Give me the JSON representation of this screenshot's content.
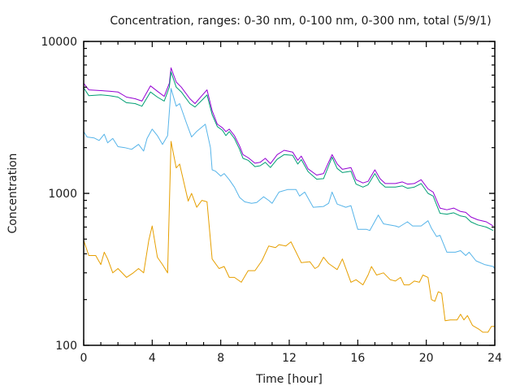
{
  "chart_data": {
    "type": "line",
    "title": "Concentration, ranges: 0-30 nm, 0-100 nm, 0-300 nm, total (5/9/1)",
    "xlabel": "Time [hour]",
    "ylabel": "Concentration",
    "xlim": [
      0,
      24
    ],
    "ylim": [
      100,
      10000
    ],
    "yscale": "log",
    "grid": false,
    "legend": "none",
    "x_ticks": [
      0,
      4,
      8,
      12,
      16,
      20,
      24
    ],
    "x_tick_labels": [
      "0",
      "4",
      "8",
      "12",
      "16",
      "20",
      "24"
    ],
    "x_minor_step": 1,
    "y_ticks": [
      100,
      1000,
      10000
    ],
    "y_tick_labels": [
      "100",
      "1000",
      "10000"
    ],
    "series": [
      {
        "name": "total",
        "color": "#9400d3",
        "points": [
          [
            0,
            5300
          ],
          [
            0.3,
            4800
          ],
          [
            1,
            4750
          ],
          [
            1.5,
            4700
          ],
          [
            2,
            4650
          ],
          [
            2.5,
            4300
          ],
          [
            3,
            4200
          ],
          [
            3.4,
            4050
          ],
          [
            3.9,
            5100
          ],
          [
            4.3,
            4700
          ],
          [
            4.7,
            4350
          ],
          [
            5.0,
            5300
          ],
          [
            5.1,
            6700
          ],
          [
            5.4,
            5400
          ],
          [
            5.7,
            5000
          ],
          [
            6.2,
            4200
          ],
          [
            6.5,
            3900
          ],
          [
            6.9,
            4400
          ],
          [
            7.2,
            4800
          ],
          [
            7.5,
            3500
          ],
          [
            7.8,
            2850
          ],
          [
            8.1,
            2700
          ],
          [
            8.3,
            2550
          ],
          [
            8.5,
            2650
          ],
          [
            8.8,
            2400
          ],
          [
            9.1,
            2050
          ],
          [
            9.3,
            1800
          ],
          [
            9.6,
            1720
          ],
          [
            10.0,
            1580
          ],
          [
            10.3,
            1600
          ],
          [
            10.6,
            1700
          ],
          [
            10.9,
            1570
          ],
          [
            11.3,
            1800
          ],
          [
            11.7,
            1920
          ],
          [
            12.2,
            1870
          ],
          [
            12.5,
            1650
          ],
          [
            12.7,
            1760
          ],
          [
            13.1,
            1450
          ],
          [
            13.6,
            1320
          ],
          [
            14.0,
            1350
          ],
          [
            14.5,
            1800
          ],
          [
            14.8,
            1560
          ],
          [
            15.1,
            1440
          ],
          [
            15.6,
            1480
          ],
          [
            15.9,
            1230
          ],
          [
            16.3,
            1170
          ],
          [
            16.6,
            1200
          ],
          [
            17.0,
            1430
          ],
          [
            17.3,
            1250
          ],
          [
            17.6,
            1160
          ],
          [
            18.2,
            1160
          ],
          [
            18.6,
            1190
          ],
          [
            18.9,
            1150
          ],
          [
            19.3,
            1160
          ],
          [
            19.7,
            1230
          ],
          [
            20.1,
            1070
          ],
          [
            20.4,
            1020
          ],
          [
            20.8,
            800
          ],
          [
            21.2,
            780
          ],
          [
            21.6,
            800
          ],
          [
            22.0,
            760
          ],
          [
            22.3,
            750
          ],
          [
            22.6,
            700
          ],
          [
            23.0,
            670
          ],
          [
            23.5,
            650
          ],
          [
            23.9,
            610
          ]
        ]
      },
      {
        "name": "0-300 nm",
        "color": "#009e73",
        "points": [
          [
            0,
            4950
          ],
          [
            0.3,
            4400
          ],
          [
            1,
            4450
          ],
          [
            1.5,
            4400
          ],
          [
            2,
            4300
          ],
          [
            2.5,
            3950
          ],
          [
            3,
            3900
          ],
          [
            3.4,
            3750
          ],
          [
            3.9,
            4650
          ],
          [
            4.3,
            4300
          ],
          [
            4.7,
            4050
          ],
          [
            5.0,
            5000
          ],
          [
            5.1,
            6300
          ],
          [
            5.4,
            5000
          ],
          [
            5.7,
            4650
          ],
          [
            6.2,
            3900
          ],
          [
            6.5,
            3700
          ],
          [
            6.9,
            4100
          ],
          [
            7.2,
            4450
          ],
          [
            7.5,
            3300
          ],
          [
            7.8,
            2750
          ],
          [
            8.1,
            2600
          ],
          [
            8.3,
            2400
          ],
          [
            8.5,
            2550
          ],
          [
            8.8,
            2300
          ],
          [
            9.1,
            1950
          ],
          [
            9.3,
            1700
          ],
          [
            9.6,
            1650
          ],
          [
            10.0,
            1500
          ],
          [
            10.3,
            1520
          ],
          [
            10.6,
            1600
          ],
          [
            10.9,
            1480
          ],
          [
            11.3,
            1680
          ],
          [
            11.7,
            1800
          ],
          [
            12.2,
            1780
          ],
          [
            12.5,
            1560
          ],
          [
            12.7,
            1670
          ],
          [
            13.1,
            1390
          ],
          [
            13.6,
            1240
          ],
          [
            14.0,
            1250
          ],
          [
            14.5,
            1730
          ],
          [
            14.8,
            1460
          ],
          [
            15.1,
            1370
          ],
          [
            15.6,
            1400
          ],
          [
            15.9,
            1150
          ],
          [
            16.3,
            1100
          ],
          [
            16.6,
            1140
          ],
          [
            17.0,
            1350
          ],
          [
            17.3,
            1180
          ],
          [
            17.6,
            1100
          ],
          [
            18.2,
            1100
          ],
          [
            18.6,
            1120
          ],
          [
            18.9,
            1080
          ],
          [
            19.3,
            1100
          ],
          [
            19.7,
            1160
          ],
          [
            20.1,
            1000
          ],
          [
            20.4,
            960
          ],
          [
            20.8,
            740
          ],
          [
            21.2,
            730
          ],
          [
            21.6,
            745
          ],
          [
            22.0,
            710
          ],
          [
            22.3,
            700
          ],
          [
            22.6,
            650
          ],
          [
            23.0,
            620
          ],
          [
            23.5,
            600
          ],
          [
            23.9,
            570
          ]
        ]
      },
      {
        "name": "0-100 nm",
        "color": "#56b4e9",
        "points": [
          [
            0,
            2550
          ],
          [
            0.2,
            2350
          ],
          [
            0.6,
            2320
          ],
          [
            0.9,
            2230
          ],
          [
            1.2,
            2450
          ],
          [
            1.4,
            2150
          ],
          [
            1.7,
            2300
          ],
          [
            2.0,
            2030
          ],
          [
            2.4,
            2000
          ],
          [
            2.8,
            1950
          ],
          [
            3.2,
            2100
          ],
          [
            3.5,
            1900
          ],
          [
            3.7,
            2300
          ],
          [
            4.0,
            2650
          ],
          [
            4.3,
            2400
          ],
          [
            4.6,
            2100
          ],
          [
            4.9,
            2400
          ],
          [
            5.1,
            4900
          ],
          [
            5.4,
            3750
          ],
          [
            5.6,
            3900
          ],
          [
            6.0,
            2900
          ],
          [
            6.3,
            2350
          ],
          [
            6.6,
            2560
          ],
          [
            7.1,
            2850
          ],
          [
            7.4,
            2000
          ],
          [
            7.5,
            1430
          ],
          [
            7.7,
            1400
          ],
          [
            8.0,
            1300
          ],
          [
            8.2,
            1350
          ],
          [
            8.5,
            1230
          ],
          [
            8.8,
            1100
          ],
          [
            9.1,
            940
          ],
          [
            9.4,
            880
          ],
          [
            9.8,
            860
          ],
          [
            10.1,
            870
          ],
          [
            10.5,
            950
          ],
          [
            10.8,
            900
          ],
          [
            11.0,
            860
          ],
          [
            11.4,
            1020
          ],
          [
            11.9,
            1060
          ],
          [
            12.4,
            1060
          ],
          [
            12.6,
            960
          ],
          [
            12.9,
            1020
          ],
          [
            13.4,
            810
          ],
          [
            14.0,
            820
          ],
          [
            14.3,
            860
          ],
          [
            14.5,
            1020
          ],
          [
            14.8,
            850
          ],
          [
            15.3,
            810
          ],
          [
            15.6,
            830
          ],
          [
            16.0,
            580
          ],
          [
            16.5,
            580
          ],
          [
            16.7,
            570
          ],
          [
            17.2,
            720
          ],
          [
            17.5,
            630
          ],
          [
            18.2,
            610
          ],
          [
            18.4,
            600
          ],
          [
            18.9,
            650
          ],
          [
            19.2,
            610
          ],
          [
            19.7,
            610
          ],
          [
            20.1,
            660
          ],
          [
            20.3,
            590
          ],
          [
            20.6,
            520
          ],
          [
            20.8,
            530
          ],
          [
            21.2,
            410
          ],
          [
            21.7,
            410
          ],
          [
            22.0,
            420
          ],
          [
            22.3,
            390
          ],
          [
            22.5,
            410
          ],
          [
            22.9,
            360
          ],
          [
            23.4,
            340
          ],
          [
            23.9,
            330
          ],
          [
            24.0,
            320
          ]
        ]
      },
      {
        "name": "0-30 nm",
        "color": "#e69f00",
        "points": [
          [
            0,
            490
          ],
          [
            0.3,
            390
          ],
          [
            0.7,
            390
          ],
          [
            1.0,
            340
          ],
          [
            1.2,
            410
          ],
          [
            1.4,
            370
          ],
          [
            1.7,
            300
          ],
          [
            2.0,
            320
          ],
          [
            2.5,
            280
          ],
          [
            2.9,
            300
          ],
          [
            3.2,
            320
          ],
          [
            3.5,
            300
          ],
          [
            3.8,
            490
          ],
          [
            4.0,
            610
          ],
          [
            4.3,
            380
          ],
          [
            4.6,
            340
          ],
          [
            4.9,
            300
          ],
          [
            5.1,
            2200
          ],
          [
            5.4,
            1470
          ],
          [
            5.6,
            1560
          ],
          [
            6.1,
            890
          ],
          [
            6.3,
            1000
          ],
          [
            6.6,
            810
          ],
          [
            6.9,
            900
          ],
          [
            7.2,
            880
          ],
          [
            7.5,
            370
          ],
          [
            7.9,
            320
          ],
          [
            8.2,
            330
          ],
          [
            8.5,
            280
          ],
          [
            8.8,
            280
          ],
          [
            9.2,
            260
          ],
          [
            9.6,
            310
          ],
          [
            10.0,
            310
          ],
          [
            10.4,
            360
          ],
          [
            10.8,
            450
          ],
          [
            11.2,
            440
          ],
          [
            11.4,
            460
          ],
          [
            11.8,
            450
          ],
          [
            12.1,
            480
          ],
          [
            12.7,
            350
          ],
          [
            13.2,
            355
          ],
          [
            13.5,
            320
          ],
          [
            13.7,
            330
          ],
          [
            14.0,
            380
          ],
          [
            14.3,
            345
          ],
          [
            14.8,
            315
          ],
          [
            15.1,
            370
          ],
          [
            15.6,
            260
          ],
          [
            15.9,
            270
          ],
          [
            16.3,
            250
          ],
          [
            16.6,
            290
          ],
          [
            16.8,
            330
          ],
          [
            17.1,
            290
          ],
          [
            17.5,
            300
          ],
          [
            17.9,
            270
          ],
          [
            18.2,
            265
          ],
          [
            18.5,
            280
          ],
          [
            18.7,
            250
          ],
          [
            19.0,
            250
          ],
          [
            19.3,
            265
          ],
          [
            19.6,
            260
          ],
          [
            19.8,
            290
          ],
          [
            20.1,
            280
          ],
          [
            20.3,
            200
          ],
          [
            20.5,
            195
          ],
          [
            20.7,
            225
          ],
          [
            20.9,
            220
          ],
          [
            21.1,
            145
          ],
          [
            21.4,
            147
          ],
          [
            21.8,
            147
          ],
          [
            22.0,
            160
          ],
          [
            22.2,
            147
          ],
          [
            22.4,
            157
          ],
          [
            22.7,
            135
          ],
          [
            23.1,
            127
          ],
          [
            23.3,
            122
          ],
          [
            23.6,
            122
          ],
          [
            23.8,
            133
          ],
          [
            24.0,
            133
          ]
        ]
      }
    ]
  }
}
